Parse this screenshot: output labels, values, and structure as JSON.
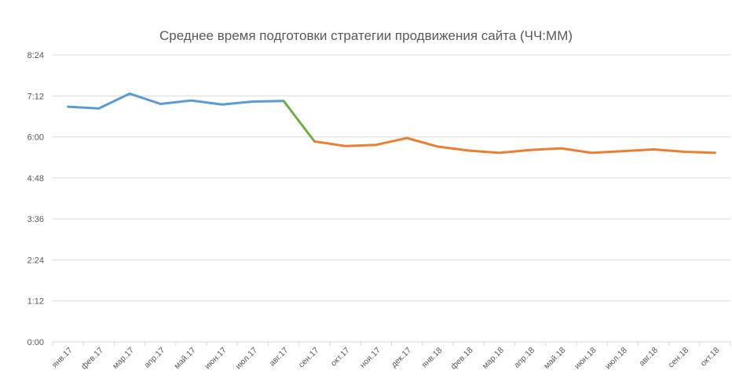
{
  "chart_data": {
    "type": "line",
    "title": "Среднее время подготовки стратегии продвижения сайта (ЧЧ:ММ)",
    "xlabel": "",
    "ylabel": "",
    "categories": [
      "янв.17",
      "фев.17",
      "мар.17",
      "апр.17",
      "май.17",
      "июн.17",
      "июл.17",
      "авг.17",
      "сен.17",
      "окт.17",
      "ноя.17",
      "дек.17",
      "янв.18",
      "фев.18",
      "мар.18",
      "апр.18",
      "май.18",
      "июн.18",
      "июл.18",
      "авг.18",
      "сен.18",
      "окт.18"
    ],
    "y_tick_labels": [
      "0:00",
      "1:12",
      "2:24",
      "3:36",
      "4:48",
      "6:00",
      "7:12",
      "8:24"
    ],
    "ylim_minutes": [
      0,
      504
    ],
    "grid": true,
    "legend": "none",
    "series": [
      {
        "color": "#5B9BD5",
        "values_minutes": [
          413,
          410,
          436,
          418,
          424,
          417,
          422,
          423,
          null,
          null,
          null,
          null,
          null,
          null,
          null,
          null,
          null,
          null,
          null,
          null,
          null,
          null
        ]
      },
      {
        "color": "#70AD47",
        "values_minutes": [
          null,
          null,
          null,
          null,
          null,
          null,
          null,
          423,
          352,
          null,
          null,
          null,
          null,
          null,
          null,
          null,
          null,
          null,
          null,
          null,
          null,
          null
        ]
      },
      {
        "color": "#ED7D31",
        "values_minutes": [
          null,
          null,
          null,
          null,
          null,
          null,
          null,
          null,
          352,
          344,
          346,
          358,
          343,
          336,
          332,
          337,
          340,
          332,
          335,
          338,
          334,
          332
        ]
      }
    ]
  }
}
